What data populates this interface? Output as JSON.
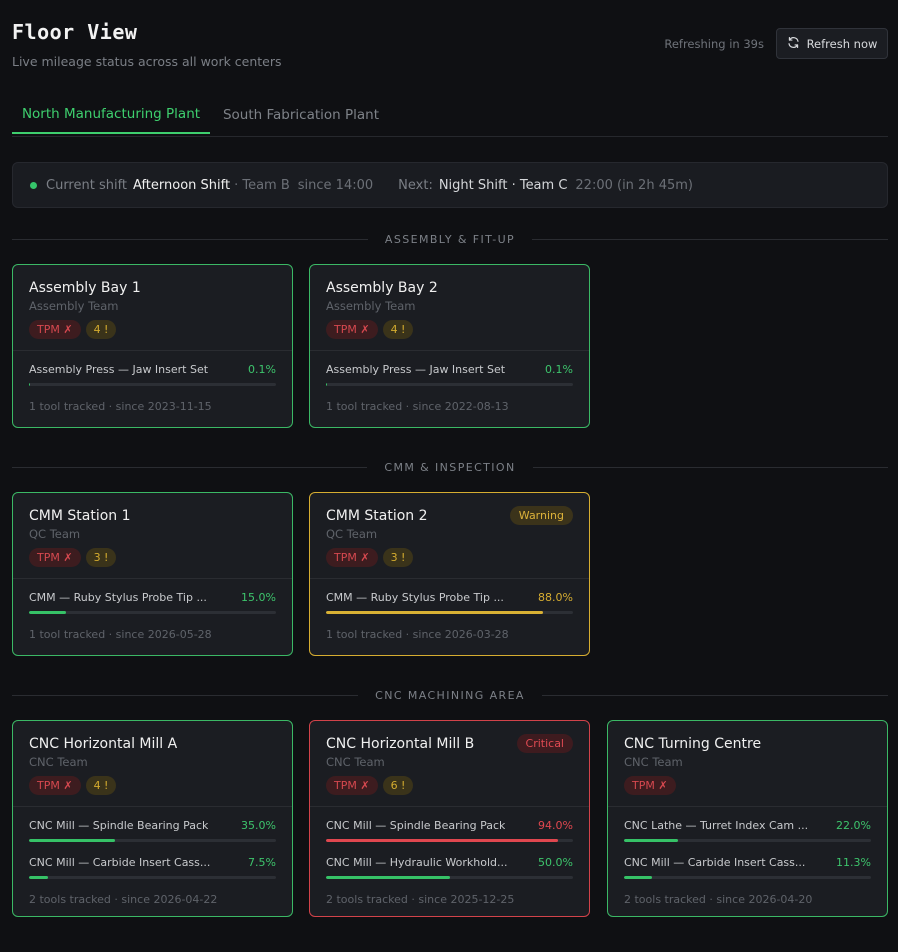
{
  "header": {
    "title": "Floor View",
    "subtitle": "Live mileage status across all work centers",
    "refresh_timer": "Refreshing in 39s",
    "refresh_label": "Refresh now"
  },
  "tabs": [
    {
      "label": "North Manufacturing Plant",
      "active": true
    },
    {
      "label": "South Fabrication Plant",
      "active": false
    }
  ],
  "shift": {
    "current_label": "Current shift",
    "current_name": "Afternoon Shift",
    "current_team": "· Team B",
    "current_since": "since 14:00",
    "next_label": "Next:",
    "next_name": "Night Shift · Team C",
    "next_time": "22:00 (in 2h 45m)"
  },
  "sections": [
    {
      "label": "ASSEMBLY & FIT-UP",
      "cards": [
        {
          "name": "Assembly Bay 1",
          "team": "Assembly Team",
          "tpm": "TPM ✗",
          "alerts": "4 !",
          "status": "ok",
          "status_label": "",
          "tools": [
            {
              "name": "Assembly Press — Jaw Insert Set",
              "pct": "0.1%",
              "value": 0.1,
              "level": "ok"
            }
          ],
          "footer": "1 tool tracked · since 2023-11-15"
        },
        {
          "name": "Assembly Bay 2",
          "team": "Assembly Team",
          "tpm": "TPM ✗",
          "alerts": "4 !",
          "status": "ok",
          "status_label": "",
          "tools": [
            {
              "name": "Assembly Press — Jaw Insert Set",
              "pct": "0.1%",
              "value": 0.1,
              "level": "ok"
            }
          ],
          "footer": "1 tool tracked · since 2022-08-13"
        }
      ]
    },
    {
      "label": "CMM & INSPECTION",
      "cards": [
        {
          "name": "CMM Station 1",
          "team": "QC Team",
          "tpm": "TPM ✗",
          "alerts": "3 !",
          "status": "ok",
          "status_label": "",
          "tools": [
            {
              "name": "CMM — Ruby Stylus Probe Tip ...",
              "pct": "15.0%",
              "value": 15.0,
              "level": "ok"
            }
          ],
          "footer": "1 tool tracked · since 2026-05-28"
        },
        {
          "name": "CMM Station 2",
          "team": "QC Team",
          "tpm": "TPM ✗",
          "alerts": "3 !",
          "status": "warning",
          "status_label": "Warning",
          "tools": [
            {
              "name": "CMM — Ruby Stylus Probe Tip ...",
              "pct": "88.0%",
              "value": 88.0,
              "level": "warn"
            }
          ],
          "footer": "1 tool tracked · since 2026-03-28"
        }
      ]
    },
    {
      "label": "CNC MACHINING AREA",
      "cards": [
        {
          "name": "CNC Horizontal Mill A",
          "team": "CNC Team",
          "tpm": "TPM ✗",
          "alerts": "4 !",
          "status": "ok",
          "status_label": "",
          "tools": [
            {
              "name": "CNC Mill — Spindle Bearing Pack",
              "pct": "35.0%",
              "value": 35.0,
              "level": "ok"
            },
            {
              "name": "CNC Mill — Carbide Insert Cass...",
              "pct": "7.5%",
              "value": 7.5,
              "level": "ok"
            }
          ],
          "footer": "2 tools tracked · since 2026-04-22"
        },
        {
          "name": "CNC Horizontal Mill B",
          "team": "CNC Team",
          "tpm": "TPM ✗",
          "alerts": "6 !",
          "status": "critical",
          "status_label": "Critical",
          "tools": [
            {
              "name": "CNC Mill — Spindle Bearing Pack",
              "pct": "94.0%",
              "value": 94.0,
              "level": "crit"
            },
            {
              "name": "CNC Mill — Hydraulic Workhold...",
              "pct": "50.0%",
              "value": 50.0,
              "level": "ok"
            }
          ],
          "footer": "2 tools tracked · since 2025-12-25"
        },
        {
          "name": "CNC Turning Centre",
          "team": "CNC Team",
          "tpm": "TPM ✗",
          "alerts": "",
          "status": "ok",
          "status_label": "",
          "tools": [
            {
              "name": "CNC Lathe — Turret Index Cam ...",
              "pct": "22.0%",
              "value": 22.0,
              "level": "ok"
            },
            {
              "name": "CNC Mill — Carbide Insert Cass...",
              "pct": "11.3%",
              "value": 11.3,
              "level": "ok"
            }
          ],
          "footer": "2 tools tracked · since 2026-04-20"
        }
      ]
    }
  ]
}
